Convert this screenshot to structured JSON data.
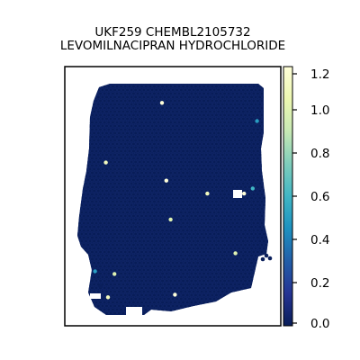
{
  "chart_data": {
    "type": "scatter",
    "title_line1": "UKF259 CHEMBL2105732",
    "title_line2": "LEVOMILNACIPRAN HYDROCHLORIDE",
    "colorbar": {
      "range": [
        0.0,
        1.2
      ],
      "ticks": [
        "0.0",
        "0.2",
        "0.4",
        "0.6",
        "0.8",
        "1.0",
        "1.2"
      ],
      "colormap": "YlGnBu_r",
      "stops": [
        "#081d58",
        "#253494",
        "#225ea8",
        "#1d91c0",
        "#41b6c4",
        "#7fcdbb",
        "#c7e9b4",
        "#edf8b1",
        "#ffffd9"
      ]
    },
    "background_value": 0.0,
    "highlight_points": [
      {
        "x": 0.45,
        "y": 0.14,
        "value": 1.2
      },
      {
        "x": 0.89,
        "y": 0.21,
        "value": 0.5
      },
      {
        "x": 0.19,
        "y": 0.37,
        "value": 1.1
      },
      {
        "x": 0.47,
        "y": 0.44,
        "value": 1.2
      },
      {
        "x": 0.66,
        "y": 0.49,
        "value": 1.1
      },
      {
        "x": 0.83,
        "y": 0.49,
        "value": 1.2
      },
      {
        "x": 0.87,
        "y": 0.47,
        "value": 0.6
      },
      {
        "x": 0.49,
        "y": 0.59,
        "value": 1.0
      },
      {
        "x": 0.14,
        "y": 0.79,
        "value": 0.5
      },
      {
        "x": 0.51,
        "y": 0.88,
        "value": 1.2
      },
      {
        "x": 0.2,
        "y": 0.89,
        "value": 1.1
      },
      {
        "x": 0.79,
        "y": 0.72,
        "value": 1.0
      },
      {
        "x": 0.23,
        "y": 0.8,
        "value": 1.0
      }
    ]
  }
}
